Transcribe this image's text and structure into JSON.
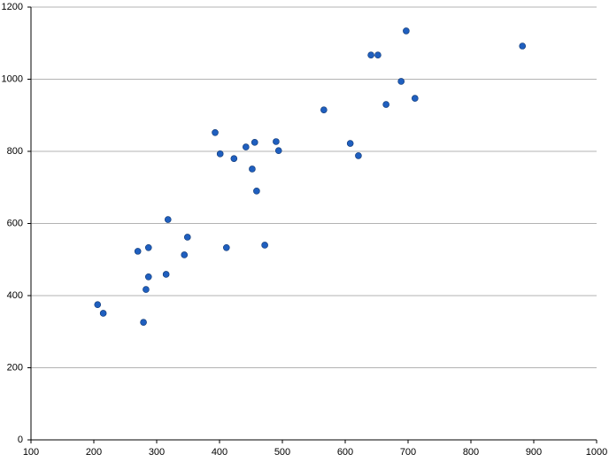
{
  "chart_data": {
    "type": "scatter",
    "x": [
      206,
      215,
      270,
      279,
      283,
      287,
      287,
      318,
      315,
      344,
      349,
      393,
      401,
      411,
      423,
      442,
      452,
      456,
      459,
      472,
      490,
      494,
      566,
      608,
      621,
      641,
      652,
      665,
      689,
      697,
      711,
      882
    ],
    "values": [
      375,
      351,
      523,
      326,
      417,
      452,
      533,
      611,
      459,
      513,
      562,
      852,
      793,
      533,
      780,
      812,
      751,
      825,
      690,
      540,
      827,
      802,
      915,
      822,
      788,
      1067,
      1067,
      930,
      994,
      1134,
      947,
      1092
    ],
    "color": "#1f5fbf",
    "xlim": [
      100,
      1000
    ],
    "xticks": [
      100,
      200,
      300,
      400,
      500,
      600,
      700,
      800,
      900,
      1000
    ],
    "ylim": [
      0,
      1200
    ],
    "yticks": [
      0,
      200,
      400,
      600,
      800,
      1000,
      1200
    ],
    "grid": true
  }
}
